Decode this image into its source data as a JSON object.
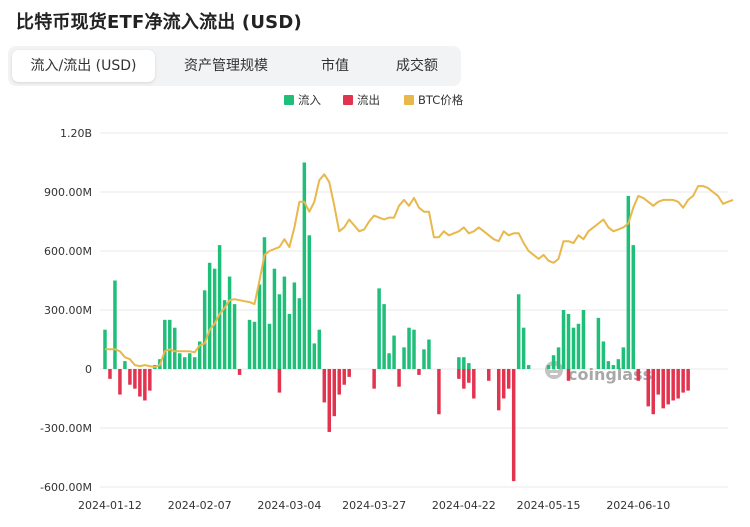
{
  "title": "比特币现货ETF净流入流出 (USD)",
  "tabs": [
    {
      "label": "流入/流出 (USD)",
      "active": true
    },
    {
      "label": "资产管理规模",
      "active": false
    },
    {
      "label": "市值",
      "active": false
    },
    {
      "label": "成交额",
      "active": false
    }
  ],
  "watermark": "coinglass",
  "colors": {
    "inflow": "#1fbf7a",
    "outflow": "#e2334f",
    "btc": "#e8b84b",
    "grid": "#e9e9e9"
  },
  "chart_data": {
    "type": "bar",
    "legend": [
      "流入",
      "流出",
      "BTC价格"
    ],
    "legend_position": "top-center",
    "yticks": [
      {
        "label": "1.20B",
        "value": 1200
      },
      {
        "label": "900.00M",
        "value": 900
      },
      {
        "label": "600.00M",
        "value": 600
      },
      {
        "label": "300.00M",
        "value": 300
      },
      {
        "label": "0",
        "value": 0
      },
      {
        "label": "-300.00M",
        "value": -300
      },
      {
        "label": "-600.00M",
        "value": -600
      }
    ],
    "ylim": [
      -600,
      1200
    ],
    "grid": true,
    "xticks": [
      {
        "label": "2024-01-12",
        "index": 1
      },
      {
        "label": "2024-02-07",
        "index": 19
      },
      {
        "label": "2024-03-04",
        "index": 37
      },
      {
        "label": "2024-03-27",
        "index": 54
      },
      {
        "label": "2024-04-22",
        "index": 72
      },
      {
        "label": "2024-05-15",
        "index": 89
      },
      {
        "label": "2024-06-10",
        "index": 107
      }
    ],
    "series": [
      {
        "name": "流入",
        "kind": "bar",
        "color": "#1fbf7a",
        "values": [
          200,
          0,
          450,
          0,
          40,
          0,
          0,
          0,
          0,
          0,
          20,
          50,
          250,
          250,
          210,
          80,
          60,
          80,
          60,
          140,
          400,
          540,
          510,
          630,
          350,
          470,
          330,
          0,
          0,
          250,
          240,
          430,
          670,
          230,
          510,
          380,
          470,
          280,
          440,
          360,
          1050,
          680,
          130,
          200,
          0,
          0,
          0,
          0,
          0,
          0,
          0,
          0,
          0,
          0,
          0,
          410,
          330,
          80,
          170,
          0,
          110,
          210,
          200,
          0,
          100,
          150,
          0,
          0,
          0,
          0,
          0,
          60,
          60,
          30,
          0,
          0,
          0,
          0,
          0,
          0,
          0,
          0,
          0,
          380,
          210,
          20,
          0,
          0,
          0,
          20,
          70,
          110,
          300,
          280,
          210,
          230,
          300,
          0,
          0,
          260,
          140,
          40,
          20,
          50,
          110,
          880,
          630,
          0,
          0,
          0,
          0,
          0,
          0,
          0,
          0,
          0,
          0,
          0,
          0,
          0,
          0,
          0
        ]
      },
      {
        "name": "流出",
        "kind": "bar",
        "color": "#e2334f",
        "values": [
          0,
          -50,
          0,
          -130,
          0,
          -80,
          -100,
          -140,
          -160,
          -110,
          0,
          0,
          0,
          0,
          0,
          0,
          0,
          0,
          0,
          0,
          0,
          0,
          0,
          0,
          0,
          0,
          0,
          -30,
          0,
          0,
          0,
          0,
          0,
          0,
          0,
          -120,
          0,
          0,
          0,
          0,
          0,
          0,
          0,
          0,
          -170,
          -320,
          -240,
          -130,
          -80,
          -40,
          0,
          0,
          0,
          0,
          -100,
          0,
          0,
          0,
          0,
          -90,
          0,
          0,
          0,
          -30,
          0,
          0,
          0,
          -230,
          0,
          0,
          0,
          -50,
          -100,
          -70,
          -150,
          0,
          0,
          -60,
          0,
          -210,
          -150,
          -100,
          -570,
          0,
          0,
          0,
          0,
          0,
          0,
          0,
          0,
          0,
          0,
          -60,
          0,
          0,
          0,
          0,
          0,
          0,
          0,
          0,
          0,
          0,
          0,
          0,
          0,
          -60,
          0,
          -190,
          -230,
          -130,
          -200,
          -180,
          -160,
          -150,
          -120,
          -110
        ]
      },
      {
        "name": "BTC价格",
        "kind": "line",
        "color": "#e8b84b",
        "values": [
          100,
          100,
          100,
          90,
          60,
          50,
          20,
          15,
          20,
          15,
          10,
          20,
          90,
          100,
          90,
          90,
          90,
          90,
          85,
          120,
          130,
          200,
          230,
          280,
          310,
          350,
          355,
          350,
          345,
          340,
          330,
          450,
          580,
          600,
          610,
          620,
          660,
          620,
          720,
          850,
          850,
          800,
          850,
          960,
          990,
          950,
          830,
          700,
          720,
          760,
          730,
          700,
          710,
          750,
          780,
          770,
          760,
          770,
          770,
          830,
          860,
          830,
          870,
          820,
          800,
          800,
          670,
          670,
          700,
          680,
          690,
          700,
          720,
          690,
          700,
          720,
          700,
          680,
          660,
          650,
          700,
          680,
          690,
          690,
          640,
          600,
          580,
          560,
          580,
          550,
          540,
          560,
          650,
          650,
          640,
          680,
          660,
          700,
          720,
          740,
          760,
          720,
          700,
          710,
          720,
          740,
          820,
          880,
          870,
          850,
          830,
          850,
          860,
          860,
          860,
          850,
          820,
          860,
          880,
          930,
          930,
          920,
          900,
          880,
          840,
          850,
          860
        ]
      }
    ],
    "x_range": [
      -1,
      125
    ]
  }
}
